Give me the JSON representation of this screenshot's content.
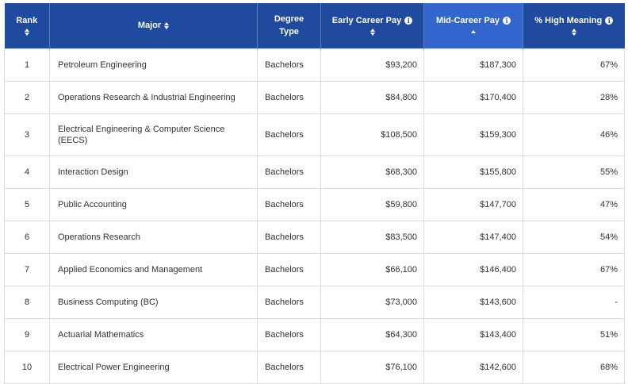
{
  "table": {
    "headers": {
      "rank": "Rank",
      "major": "Major",
      "degree_line1": "Degree",
      "degree_line2": "Type",
      "early": "Early Career Pay",
      "mid": "Mid-Career Pay",
      "meaning": "% High Meaning"
    },
    "sorted_column": "Mid-Career Pay",
    "sort_direction": "descending",
    "colors": {
      "header_bg": "#1f4a9d",
      "active_header_bg": "#3366cc",
      "border": "#dddddd",
      "text": "#333333"
    },
    "rows": [
      {
        "rank": "1",
        "major": "Petroleum Engineering",
        "degree": "Bachelors",
        "early": "$93,200",
        "mid": "$187,300",
        "meaning": "67%"
      },
      {
        "rank": "2",
        "major": "Operations Research & Industrial Engineering",
        "degree": "Bachelors",
        "early": "$84,800",
        "mid": "$170,400",
        "meaning": "28%"
      },
      {
        "rank": "3",
        "major": "Electrical Engineering & Computer Science (EECS)",
        "degree": "Bachelors",
        "early": "$108,500",
        "mid": "$159,300",
        "meaning": "46%"
      },
      {
        "rank": "4",
        "major": "Interaction Design",
        "degree": "Bachelors",
        "early": "$68,300",
        "mid": "$155,800",
        "meaning": "55%"
      },
      {
        "rank": "5",
        "major": "Public Accounting",
        "degree": "Bachelors",
        "early": "$59,800",
        "mid": "$147,700",
        "meaning": "47%"
      },
      {
        "rank": "6",
        "major": "Operations Research",
        "degree": "Bachelors",
        "early": "$83,500",
        "mid": "$147,400",
        "meaning": "54%"
      },
      {
        "rank": "7",
        "major": "Applied Economics and Management",
        "degree": "Bachelors",
        "early": "$66,100",
        "mid": "$146,400",
        "meaning": "67%"
      },
      {
        "rank": "8",
        "major": "Business Computing (BC)",
        "degree": "Bachelors",
        "early": "$73,000",
        "mid": "$143,600",
        "meaning": "-"
      },
      {
        "rank": "9",
        "major": "Actuarial Mathematics",
        "degree": "Bachelors",
        "early": "$64,300",
        "mid": "$143,400",
        "meaning": "51%"
      },
      {
        "rank": "10",
        "major": "Electrical Power Engineering",
        "degree": "Bachelors",
        "early": "$76,100",
        "mid": "$142,600",
        "meaning": "68%"
      }
    ]
  }
}
